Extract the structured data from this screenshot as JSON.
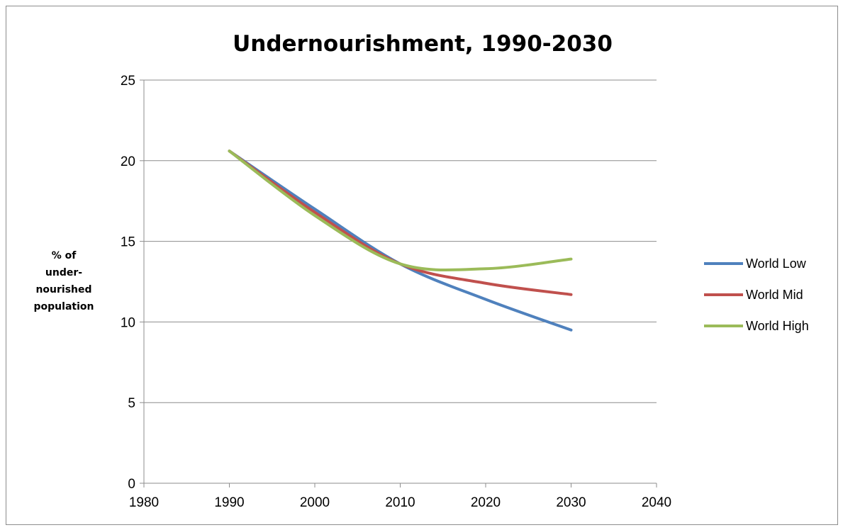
{
  "chart_data": {
    "type": "line",
    "title": "Undernourishment, 1990-2030",
    "ylabel_lines": [
      "% of",
      "under-",
      "nourished",
      "population"
    ],
    "xlabel": "",
    "xlim": [
      1980,
      2040
    ],
    "ylim": [
      0,
      25
    ],
    "xticks": [
      "1980",
      "1990",
      "2000",
      "2010",
      "2020",
      "2030",
      "2040"
    ],
    "yticks": [
      "0",
      "5",
      "10",
      "15",
      "20",
      "25"
    ],
    "grid": "horizontal",
    "legend_position": "right",
    "series": [
      {
        "name": "World Low",
        "color": "#4f81bd",
        "x": [
          1990,
          2000,
          2010,
          2020,
          2030
        ],
        "y": [
          20.6,
          17.0,
          13.6,
          11.4,
          9.5
        ]
      },
      {
        "name": "World Mid",
        "color": "#c0504d",
        "x": [
          1990,
          2000,
          2010,
          2020,
          2030
        ],
        "y": [
          20.6,
          16.8,
          13.6,
          12.4,
          11.7
        ]
      },
      {
        "name": "World High",
        "color": "#9bbb59",
        "x": [
          1990,
          2000,
          2010,
          2020,
          2030
        ],
        "y": [
          20.6,
          16.6,
          13.6,
          13.3,
          13.9
        ]
      }
    ]
  }
}
